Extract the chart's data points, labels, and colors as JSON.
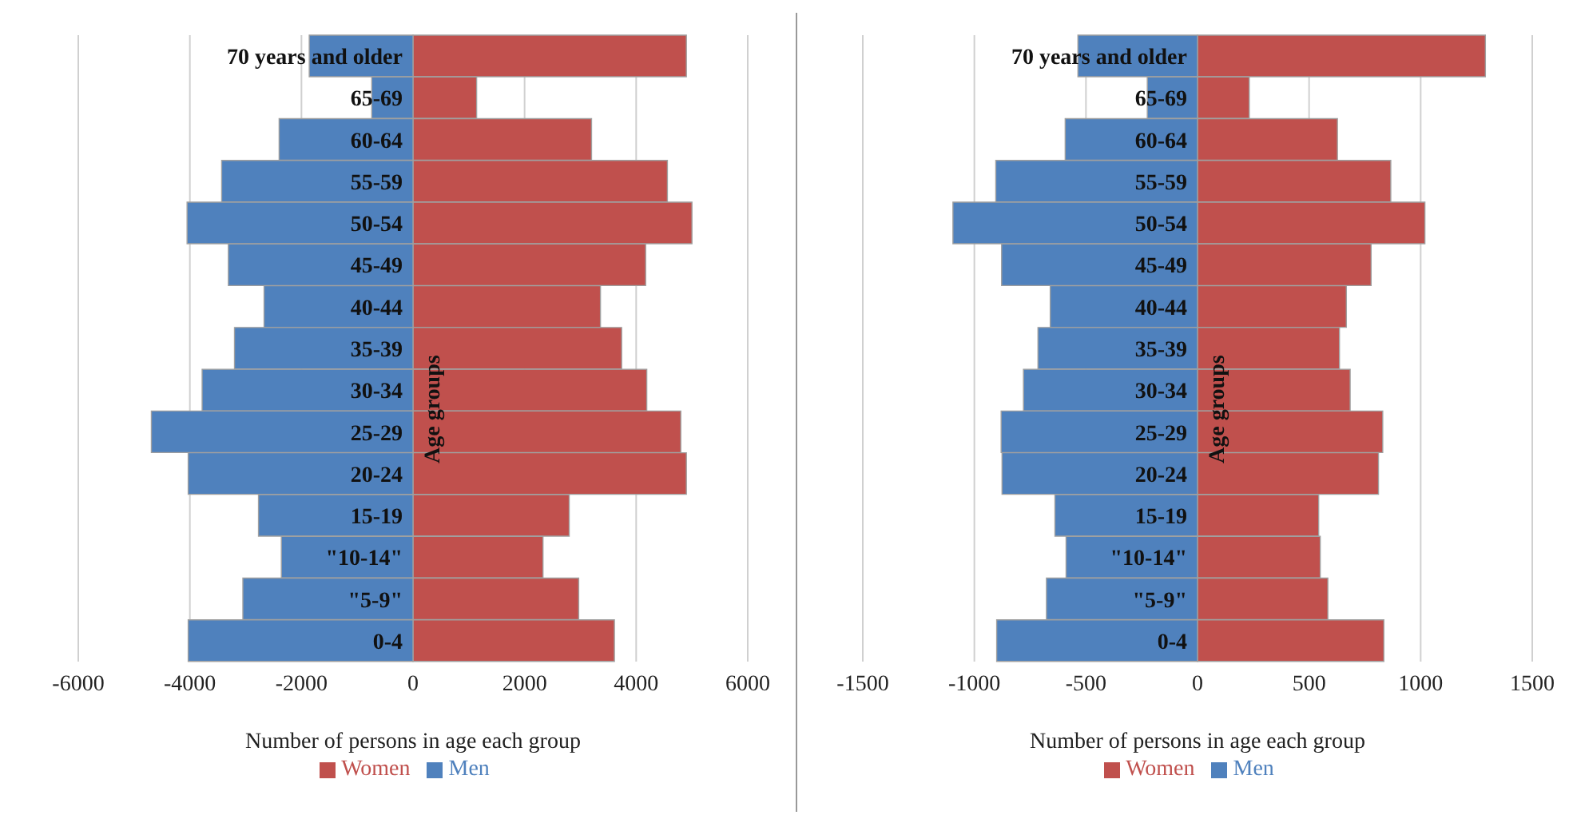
{
  "chart_data": [
    {
      "type": "bar",
      "orientation": "horizontal",
      "stacked": true,
      "xlabel": "Number of persons in age each group",
      "ylabel": "Age groups",
      "categories": [
        "70 years and older",
        "65-69",
        "60-64",
        "55-59",
        "50-54",
        "45-49",
        "40-44",
        "35-39",
        "30-34",
        "25-29",
        "20-24",
        "15-19",
        "\"10-14\"",
        "\"5-9\"",
        "0-4"
      ],
      "series": [
        {
          "name": "Women",
          "color": "#c0504d",
          "values": [
            4900,
            1140,
            3200,
            4560,
            5000,
            4170,
            3360,
            3740,
            4190,
            4800,
            4900,
            2800,
            2330,
            2970,
            3610
          ]
        },
        {
          "name": "Men",
          "color": "#4f81bd",
          "values": [
            -1860,
            -740,
            -2400,
            -3430,
            -4050,
            -3310,
            -2670,
            -3200,
            -3780,
            -4690,
            -4030,
            -2770,
            -2360,
            -3050,
            -4030
          ]
        }
      ],
      "xlim": [
        -6000,
        6000
      ],
      "xticks": [
        -6000,
        -4000,
        -2000,
        0,
        2000,
        4000,
        6000
      ],
      "grid": "x",
      "legend": "bottom"
    },
    {
      "type": "bar",
      "orientation": "horizontal",
      "stacked": true,
      "xlabel": "Number of persons in age each group",
      "ylabel": "Age groups",
      "categories": [
        "70 years and older",
        "65-69",
        "60-64",
        "55-59",
        "50-54",
        "45-49",
        "40-44",
        "35-39",
        "30-34",
        "25-29",
        "20-24",
        "15-19",
        "\"10-14\"",
        "\"5-9\"",
        "0-4"
      ],
      "series": [
        {
          "name": "Women",
          "color": "#c0504d",
          "values": [
            1290,
            232,
            627,
            866,
            1019,
            778,
            667,
            636,
            684,
            830,
            811,
            543,
            550,
            584,
            835
          ]
        },
        {
          "name": "Men",
          "color": "#4f81bd",
          "values": [
            -536,
            -225,
            -593,
            -904,
            -1096,
            -878,
            -660,
            -715,
            -780,
            -880,
            -876,
            -639,
            -589,
            -677,
            -900
          ]
        }
      ],
      "xlim": [
        -1500,
        1500
      ],
      "xticks": [
        -1500,
        -1000,
        -500,
        0,
        500,
        1000,
        1500
      ],
      "grid": "x",
      "legend": "bottom"
    }
  ]
}
